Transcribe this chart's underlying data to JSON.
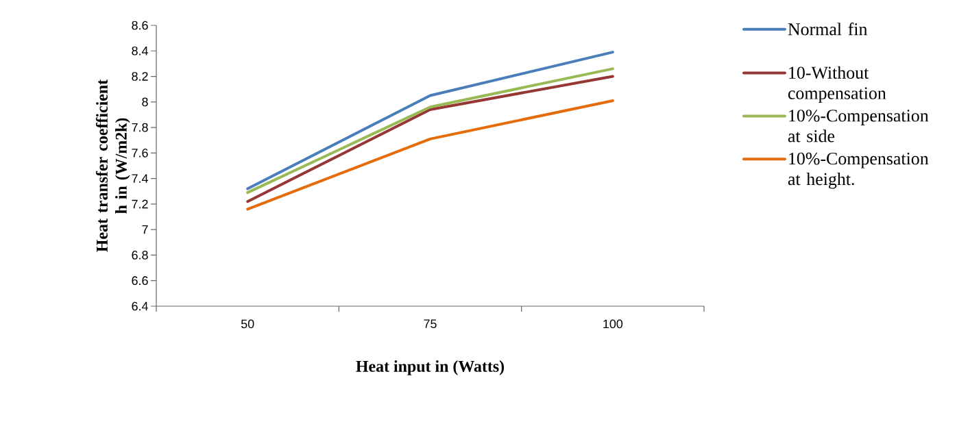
{
  "chart_data": {
    "type": "line",
    "xlabel": "Heat input in (Watts)",
    "ylabel": "Heat transfer coefficient h in (W/m2k)",
    "categories": [
      "50",
      "75",
      "100"
    ],
    "series": [
      {
        "name": "Normal fin",
        "color": "#4a7ebb",
        "values": [
          7.32,
          8.05,
          8.39
        ]
      },
      {
        "name": "10-Without compensation",
        "color": "#953735",
        "values": [
          7.22,
          7.94,
          8.2
        ]
      },
      {
        "name": "10%-Compensation at side",
        "color": "#98b954",
        "values": [
          7.29,
          7.96,
          8.26
        ]
      },
      {
        "name": "10%-Compensation at height.",
        "color": "#e46c0a",
        "values": [
          7.16,
          7.71,
          8.01
        ]
      }
    ],
    "ylim": [
      6.4,
      8.6
    ],
    "yticks": [
      6.4,
      6.6,
      6.8,
      7,
      7.2,
      7.4,
      7.6,
      7.8,
      8,
      8.2,
      8.4,
      8.6
    ],
    "grid": false,
    "legend": "right",
    "marker": "none",
    "line_style": "solid"
  }
}
